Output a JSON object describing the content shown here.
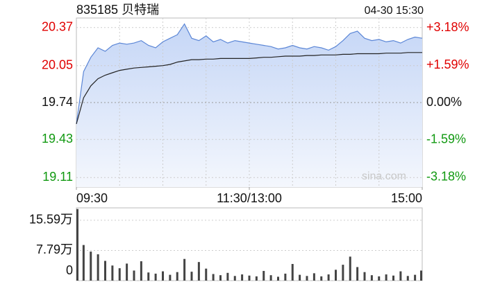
{
  "chart_data": [
    {
      "type": "line",
      "title": "835185 贝特瑞",
      "timestamp": "04-30 15:30",
      "watermark": "sina.com",
      "x": [
        0,
        5,
        10,
        15,
        20,
        25,
        30,
        35,
        40,
        45,
        50,
        55,
        60,
        65,
        70,
        75,
        80,
        85,
        90,
        95,
        100,
        105,
        110,
        115,
        120,
        125,
        130,
        135,
        140,
        145,
        150,
        155,
        160,
        165,
        170,
        175,
        180,
        185,
        190,
        195,
        200,
        205,
        210,
        215,
        220,
        225,
        230,
        235,
        240
      ],
      "series": [
        {
          "color": "#5b86d6",
          "values": [
            19.56,
            20.0,
            20.12,
            20.2,
            20.17,
            20.22,
            20.24,
            20.23,
            20.24,
            20.26,
            20.22,
            20.2,
            20.25,
            20.28,
            20.31,
            20.4,
            20.28,
            20.26,
            20.3,
            20.25,
            20.27,
            20.24,
            20.26,
            20.25,
            20.24,
            20.23,
            20.22,
            20.21,
            20.19,
            20.2,
            20.22,
            20.2,
            20.19,
            20.21,
            20.2,
            20.18,
            20.21,
            20.26,
            20.32,
            20.34,
            20.28,
            20.26,
            20.27,
            20.25,
            20.26,
            20.24,
            20.27,
            20.29,
            20.28
          ]
        },
        {
          "color": "#222222",
          "values": [
            19.56,
            19.78,
            19.88,
            19.94,
            19.97,
            19.99,
            20.01,
            20.02,
            20.03,
            20.035,
            20.04,
            20.045,
            20.05,
            20.06,
            20.08,
            20.09,
            20.1,
            20.1,
            20.105,
            20.105,
            20.11,
            20.11,
            20.11,
            20.11,
            20.11,
            20.115,
            20.12,
            20.12,
            20.125,
            20.13,
            20.13,
            20.13,
            20.135,
            20.135,
            20.14,
            20.14,
            20.14,
            20.145,
            20.145,
            20.15,
            20.15,
            20.15,
            20.15,
            20.155,
            20.155,
            20.155,
            20.16,
            20.16,
            20.16
          ]
        }
      ],
      "area_color": "#dbe6fa",
      "xlim": [
        0,
        240
      ],
      "xticks": [
        {
          "value": 0,
          "label": "09:30"
        },
        {
          "value": 120,
          "label": "11:30/13:00"
        },
        {
          "value": 240,
          "label": "15:00"
        }
      ],
      "ylim": [
        19.03,
        20.45
      ],
      "yticks": [
        20.37,
        20.05,
        19.74,
        19.43,
        19.11
      ],
      "y2lim": [
        -3.6,
        3.6
      ],
      "y2ticks": [
        {
          "value": 3.18,
          "label": "+3.18%"
        },
        {
          "value": 1.59,
          "label": "+1.59%"
        },
        {
          "value": 0,
          "label": "0.00%"
        },
        {
          "value": -1.59,
          "label": "-1.59%"
        },
        {
          "value": -3.18,
          "label": "-3.18%"
        }
      ],
      "grid": true,
      "up_color": "#e00000",
      "down_color": "#119911"
    },
    {
      "type": "bar",
      "x": [
        0,
        5,
        10,
        15,
        20,
        25,
        30,
        35,
        40,
        45,
        50,
        55,
        60,
        65,
        70,
        75,
        80,
        85,
        90,
        95,
        100,
        105,
        110,
        115,
        120,
        125,
        130,
        135,
        140,
        145,
        150,
        155,
        160,
        165,
        170,
        175,
        180,
        185,
        190,
        195,
        200,
        205,
        210,
        215,
        220,
        225,
        230,
        235,
        240
      ],
      "values": [
        18.5,
        9.2,
        7.5,
        6.8,
        5.1,
        3.9,
        3.2,
        4.4,
        2.6,
        5.0,
        2.1,
        1.8,
        2.4,
        1.5,
        2.2,
        5.6,
        2.3,
        4.8,
        3.1,
        1.7,
        1.4,
        2.0,
        1.2,
        1.6,
        1.3,
        1.1,
        2.5,
        1.4,
        1.0,
        1.8,
        4.3,
        1.5,
        1.2,
        1.9,
        1.1,
        1.6,
        2.8,
        4.1,
        6.2,
        3.5,
        2.2,
        1.4,
        1.1,
        1.6,
        1.3,
        2.4,
        1.2,
        1.5,
        2.6
      ],
      "color": "#444444",
      "ylim": [
        0,
        18.8
      ],
      "yticks": [
        {
          "value": 15.59,
          "label": "15.59万"
        },
        {
          "value": 7.79,
          "label": "7.79万"
        },
        0
      ]
    }
  ]
}
